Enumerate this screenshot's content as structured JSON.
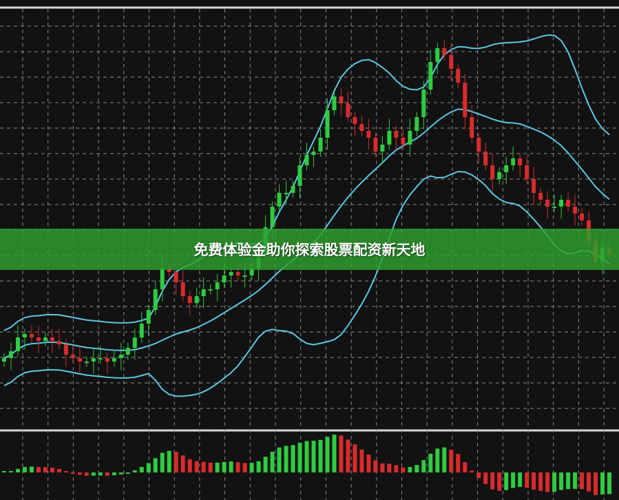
{
  "banner": {
    "text": "免费体验金助你探索股票配资新天地"
  },
  "colors": {
    "background": "#121212",
    "grid": "#8a8a8a",
    "up": "#2ecc40",
    "down": "#d92b2b",
    "band": "#5bc8e6",
    "divider": "#d8d8d8",
    "banner": "#2ea02e"
  },
  "chart_data": {
    "type": "candlestick",
    "indicators": [
      "bollinger-bands",
      "histogram-oscillator"
    ],
    "grid": true,
    "closes": [
      16,
      18,
      22,
      23,
      22,
      21,
      22,
      21,
      20,
      17,
      16,
      15,
      15,
      16,
      16,
      15,
      16,
      17,
      19,
      22,
      26,
      30,
      36,
      42,
      41,
      38,
      34,
      32,
      34,
      36,
      36,
      38,
      40,
      41,
      40,
      40,
      42,
      46,
      54,
      60,
      64,
      64,
      66,
      72,
      75,
      76,
      80,
      88,
      92,
      90,
      86,
      84,
      82,
      80,
      76,
      78,
      82,
      80,
      78,
      82,
      86,
      94,
      102,
      106,
      104,
      100,
      96,
      86,
      80,
      76,
      72,
      68,
      70,
      72,
      74,
      72,
      68,
      64,
      62,
      60,
      60,
      62,
      60,
      58,
      56,
      50,
      44,
      48,
      46
    ]
  }
}
